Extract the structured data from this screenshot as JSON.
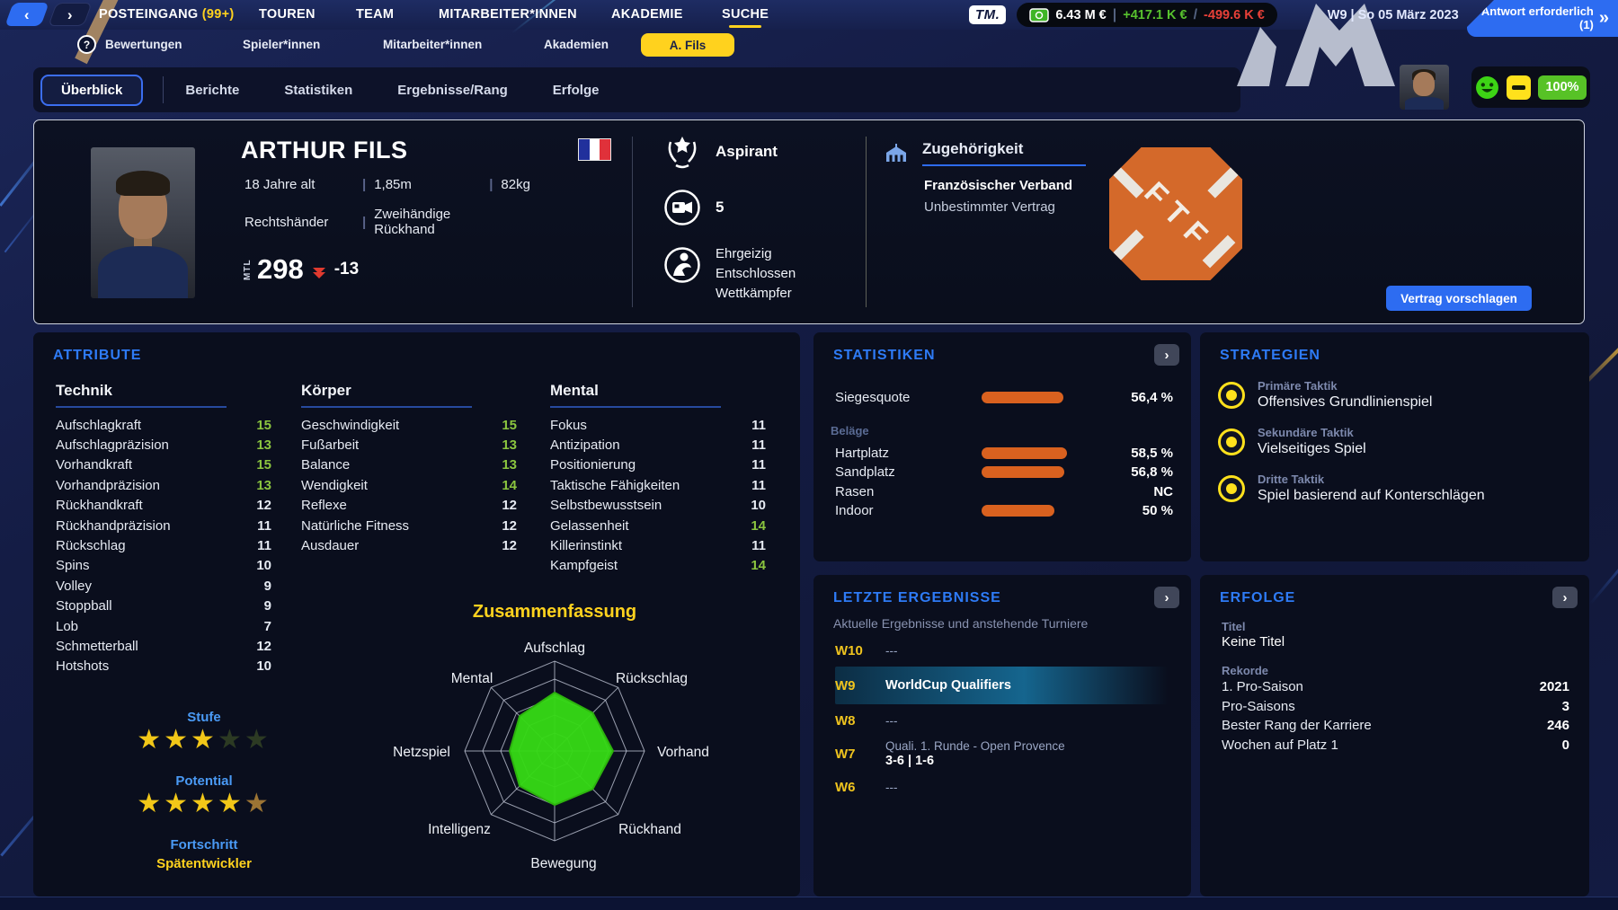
{
  "topnav": {
    "back_icon": "‹",
    "forward_icon": "›",
    "help_icon": "?",
    "items": [
      {
        "label": "POSTEINGANG",
        "badge": "(99+)"
      },
      {
        "label": "TOUREN"
      },
      {
        "label": "TEAM"
      },
      {
        "label": "MITARBEITER*INNEN"
      },
      {
        "label": "AKADEMIE"
      },
      {
        "label": "SUCHE"
      }
    ],
    "tm_badge": "TM.",
    "balance": "6.43 M €",
    "balance_sep": "|",
    "income": "+417.1 K €",
    "flow_sep": "/",
    "expense": "-499.6 K €",
    "date": "W9 | So 05 März 2023",
    "answer_button": "Antwort erforderlich (1)",
    "answer_chevron": "»"
  },
  "subnav": {
    "items": [
      "Bewertungen",
      "Spieler*innen",
      "Mitarbeiter*innen",
      "Akademien"
    ],
    "active_pill": "A. Fils"
  },
  "tabs": {
    "items": [
      "Überblick",
      "Berichte",
      "Statistiken",
      "Ergebnisse/Rang",
      "Erfolge"
    ],
    "condition_value": "100%"
  },
  "player": {
    "name": "ARTHUR FILS",
    "age": "18 Jahre alt",
    "height": "1,85m",
    "weight": "82kg",
    "hand": "Rechtshänder",
    "backhand": "Zweihändige Rückhand",
    "sep": "|",
    "rank_label": "MTL",
    "rank": "298",
    "rank_delta": "-13",
    "status": "Aspirant",
    "media_count": "5",
    "traits": [
      "Ehrgeizig",
      "Entschlossen",
      "Wettkämpfer"
    ],
    "affiliation_title": "Zugehörigkeit",
    "federation": "Französischer Verband",
    "contract": "Unbestimmter Vertrag",
    "logo_text": "FTF",
    "propose_button": "Vertrag vorschlagen"
  },
  "attributes": {
    "title": "ATTRIBUTE",
    "groups": [
      {
        "title": "Technik",
        "rows": [
          {
            "label": "Aufschlagkraft",
            "value": 15
          },
          {
            "label": "Aufschlagpräzision",
            "value": 13
          },
          {
            "label": "Vorhandkraft",
            "value": 15
          },
          {
            "label": "Vorhandpräzision",
            "value": 13
          },
          {
            "label": "Rückhandkraft",
            "value": 12
          },
          {
            "label": "Rückhandpräzision",
            "value": 11
          },
          {
            "label": "Rückschlag",
            "value": 11
          },
          {
            "label": "Spins",
            "value": 10
          },
          {
            "label": "Volley",
            "value": 9
          },
          {
            "label": "Stoppball",
            "value": 9
          },
          {
            "label": "Lob",
            "value": 7
          },
          {
            "label": "Schmetterball",
            "value": 12
          },
          {
            "label": "Hotshots",
            "value": 10
          }
        ]
      },
      {
        "title": "Körper",
        "rows": [
          {
            "label": "Geschwindigkeit",
            "value": 15
          },
          {
            "label": "Fußarbeit",
            "value": 13
          },
          {
            "label": "Balance",
            "value": 13
          },
          {
            "label": "Wendigkeit",
            "value": 14
          },
          {
            "label": "Reflexe",
            "value": 12
          },
          {
            "label": "Natürliche Fitness",
            "value": 12
          },
          {
            "label": "Ausdauer",
            "value": 12
          }
        ]
      },
      {
        "title": "Mental",
        "rows": [
          {
            "label": "Fokus",
            "value": 11
          },
          {
            "label": "Antizipation",
            "value": 11
          },
          {
            "label": "Positionierung",
            "value": 11
          },
          {
            "label": "Taktische Fähigkeiten",
            "value": 11
          },
          {
            "label": "Selbstbewusstsein",
            "value": 10
          },
          {
            "label": "Gelassenheit",
            "value": 14
          },
          {
            "label": "Killerinstinkt",
            "value": 11
          },
          {
            "label": "Kampfgeist",
            "value": 14
          }
        ]
      }
    ],
    "level": {
      "label": "Stufe",
      "stars": [
        "full",
        "full",
        "full",
        "empty",
        "empty"
      ]
    },
    "potential": {
      "label": "Potential",
      "stars": [
        "full",
        "full",
        "full",
        "full",
        "bronze"
      ]
    },
    "progress_label": "Fortschritt",
    "progress_value": "Spätentwickler"
  },
  "chart_data": {
    "type": "radar",
    "title": "Zusammenfassung",
    "categories": [
      "Aufschlag",
      "Rückschlag",
      "Vorhand",
      "Rückhand",
      "Bewegung",
      "Intelligenz",
      "Netzspiel",
      "Mental"
    ],
    "values": [
      13,
      12,
      13,
      12,
      12,
      11,
      10,
      11
    ],
    "max": 20,
    "rings": 5,
    "fill": "#35d915",
    "grid_color": "#c8cedd"
  },
  "statistics": {
    "title": "STATISTIKEN",
    "win_row": {
      "label": "Siegesquote",
      "pct": 56.4,
      "display": "56,4 %"
    },
    "surfaces_label": "Beläge",
    "surface_rows": [
      {
        "label": "Hartplatz",
        "pct": 58.5,
        "display": "58,5 %"
      },
      {
        "label": "Sandplatz",
        "pct": 56.8,
        "display": "56,8 %"
      },
      {
        "label": "Rasen",
        "pct": null,
        "display": "NC"
      },
      {
        "label": "Indoor",
        "pct": 50,
        "display": "50 %"
      }
    ]
  },
  "results": {
    "title": "LETZTE ERGEBNISSE",
    "subtitle": "Aktuelle Ergebnisse und anstehende Turniere",
    "rows": [
      {
        "week": "W10",
        "line1": "---"
      },
      {
        "week": "W9",
        "line1": "WorldCup Qualifiers",
        "highlighted": true
      },
      {
        "week": "W8",
        "line1": "---"
      },
      {
        "week": "W7",
        "line1": "Quali. 1. Runde - Open Provence",
        "line2": "3-6 | 1-6"
      },
      {
        "week": "W6",
        "line1": "---"
      }
    ]
  },
  "strategies": {
    "title": "STRATEGIEN",
    "items": [
      {
        "label": "Primäre Taktik",
        "value": "Offensives Grundlinienspiel"
      },
      {
        "label": "Sekundäre Taktik",
        "value": "Vielseitiges Spiel"
      },
      {
        "label": "Dritte Taktik",
        "value": "Spiel basierend auf Konterschlägen"
      }
    ]
  },
  "achievements": {
    "title": "ERFOLGE",
    "titles_label": "Titel",
    "titles_value": "Keine Titel",
    "records_label": "Rekorde",
    "rows": [
      {
        "label": "1. Pro-Saison",
        "value": "2021"
      },
      {
        "label": "Pro-Saisons",
        "value": "3"
      },
      {
        "label": "Bester Rang der Karriere",
        "value": "246"
      },
      {
        "label": "Wochen auf Platz 1",
        "value": "0"
      }
    ]
  },
  "colors": {
    "accent_blue": "#2e7bf6",
    "accent_yellow": "#ffd21e",
    "bar_orange": "#d9611f",
    "attr_green": "#8bc53f",
    "positive_green": "#58c22e",
    "negative_red": "#e74038"
  }
}
